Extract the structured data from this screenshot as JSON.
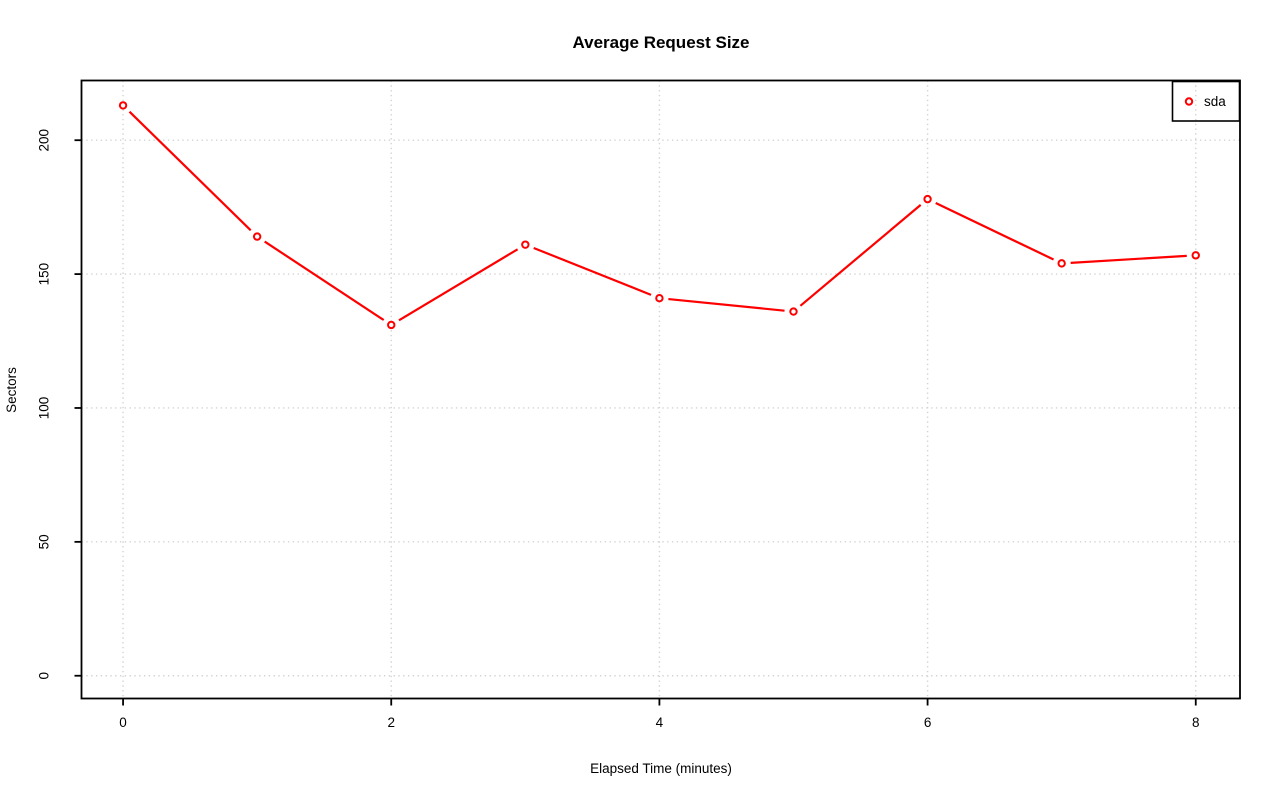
{
  "page": {
    "background": "#ffffff"
  },
  "chart_data": {
    "type": "line",
    "title": "Average Request Size",
    "xlabel": "Elapsed Time (minutes)",
    "ylabel": "Sectors",
    "x": [
      0,
      1,
      2,
      3,
      4,
      5,
      6,
      7,
      8
    ],
    "series": [
      {
        "name": "sda",
        "color": "#ff0000",
        "marker": "open-circle",
        "line_style": "solid-with-point-gaps",
        "values": [
          213,
          164,
          131,
          161,
          141,
          136,
          178,
          154,
          157
        ]
      }
    ],
    "x_ticks": [
      0,
      2,
      4,
      6,
      8
    ],
    "y_ticks": [
      0,
      50,
      100,
      150,
      200
    ],
    "xlim": [
      -0.31,
      8.33
    ],
    "ylim": [
      -8.5,
      222.3
    ],
    "grid": {
      "style": "dotted",
      "color": "#d3d3d3",
      "x_at": [
        0,
        2,
        4,
        6,
        8
      ],
      "y_at": [
        0,
        50,
        100,
        150,
        200
      ]
    },
    "legend": {
      "position": "topright",
      "entries": [
        {
          "label": "sda",
          "color": "#ff0000"
        }
      ]
    },
    "axis_color": "#000000",
    "text_color": "#000000"
  }
}
